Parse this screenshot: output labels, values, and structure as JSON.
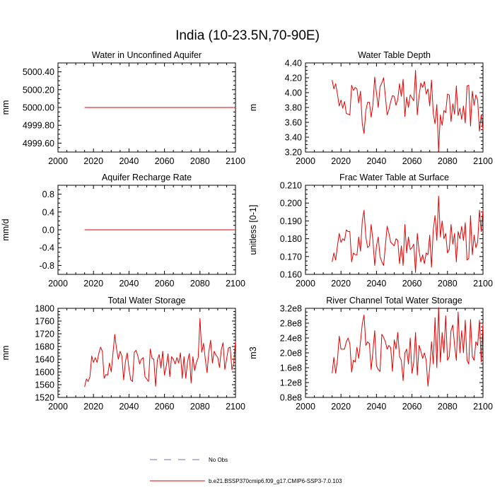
{
  "page": {
    "title": "India (10-23.5N,70-90E)"
  },
  "legend": {
    "items": [
      {
        "label": "No Obs",
        "color": "#7070b0",
        "dash": true
      },
      {
        "label": "b.e21.BSSP370cmip6.f09_g17.CMIP6-SSP3-7.0.103",
        "color": "#e60000",
        "dash": false
      }
    ]
  },
  "chart_data": [
    {
      "type": "line",
      "title": "Water in Unconfined Aquifer",
      "ylabel": "mm",
      "xlim": [
        2000,
        2100
      ],
      "xticks": [
        2000,
        2020,
        2040,
        2060,
        2080,
        2100
      ],
      "ylim": [
        4999.5,
        5000.5
      ],
      "yticks": [
        4999.6,
        4999.8,
        5000.0,
        5000.2,
        5000.4
      ],
      "yticklabels": [
        "4999.60",
        "4999.80",
        "5000.00",
        "5000.20",
        "5000.40"
      ],
      "series": [
        {
          "name": "b.e21.BSSP370cmip6.f09_g17.CMIP6-SSP3-7.0.103",
          "color": "#e60000",
          "x": [
            2015,
            2100
          ],
          "values": [
            5000.0,
            5000.0
          ]
        }
      ]
    },
    {
      "type": "line",
      "title": "Water Table Depth",
      "ylabel": "m",
      "xlim": [
        2000,
        2100
      ],
      "xticks": [
        2000,
        2020,
        2040,
        2060,
        2080,
        2100
      ],
      "ylim": [
        3.2,
        4.4
      ],
      "yticks": [
        3.2,
        3.4,
        3.6,
        3.8,
        4.0,
        4.2,
        4.4
      ],
      "yticklabels": [
        "3.20",
        "3.40",
        "3.60",
        "3.80",
        "4.00",
        "4.20",
        "4.40"
      ],
      "series": [
        {
          "name": "b.e21.BSSP370cmip6.f09_g17.CMIP6-SSP3-7.0.103",
          "color": "#e60000",
          "x_start": 2015,
          "values": [
            4.17,
            4.05,
            4.12,
            3.98,
            3.82,
            3.9,
            3.79,
            3.88,
            3.72,
            3.71,
            3.7,
            4.1,
            4.03,
            4.07,
            4.05,
            3.86,
            4.02,
            3.58,
            3.45,
            3.76,
            3.87,
            3.87,
            3.67,
            3.84,
            4.21,
            3.99,
            3.8,
            4.08,
            4.13,
            4.2,
            3.95,
            3.7,
            3.77,
            3.88,
            3.96,
            3.95,
            3.83,
            3.91,
            4.12,
            3.95,
            4.18,
            3.68,
            3.94,
            3.8,
            3.97,
            3.93,
            3.89,
            4.3,
            3.7,
            3.96,
            4.13,
            4.07,
            4.15,
            3.98,
            4.05,
            3.82,
            4.17,
            3.72,
            3.58,
            3.84,
            3.21,
            3.7,
            3.56,
            3.76,
            3.73,
            3.98,
            3.97,
            3.61,
            3.85,
            3.71,
            4.09,
            3.69,
            3.79,
            3.64,
            3.82,
            3.59,
            4.09,
            4.1,
            3.55,
            4.02,
            3.83,
            3.97,
            3.9,
            3.48,
            3.7,
            3.5
          ]
        }
      ]
    },
    {
      "type": "line",
      "title": "Aquifer Recharge Rate",
      "ylabel": "mm/d",
      "xlim": [
        2000,
        2100
      ],
      "xticks": [
        2000,
        2020,
        2040,
        2060,
        2080,
        2100
      ],
      "ylim": [
        -1.0,
        1.0
      ],
      "yticks": [
        -0.8,
        -0.4,
        0.0,
        0.4,
        0.8
      ],
      "yticklabels": [
        "-0.8",
        "-0.4",
        "0.0",
        "0.4",
        "0.8"
      ],
      "series": [
        {
          "name": "b.e21.BSSP370cmip6.f09_g17.CMIP6-SSP3-7.0.103",
          "color": "#e60000",
          "x": [
            2015,
            2100
          ],
          "values": [
            0.0,
            0.0
          ]
        }
      ]
    },
    {
      "type": "line",
      "title": "Frac Water Table at Surface",
      "ylabel": "unitless [0-1]",
      "xlim": [
        2000,
        2100
      ],
      "xticks": [
        2000,
        2020,
        2040,
        2060,
        2080,
        2100
      ],
      "ylim": [
        0.16,
        0.21
      ],
      "yticks": [
        0.16,
        0.17,
        0.18,
        0.19,
        0.2,
        0.21
      ],
      "yticklabels": [
        "0.160",
        "0.170",
        "0.180",
        "0.190",
        "0.200",
        "0.210"
      ],
      "series": [
        {
          "name": "b.e21.BSSP370cmip6.f09_g17.CMIP6-SSP3-7.0.103",
          "color": "#e60000",
          "x_start": 2015,
          "values": [
            0.167,
            0.172,
            0.168,
            0.176,
            0.183,
            0.178,
            0.18,
            0.179,
            0.185,
            0.184,
            0.184,
            0.167,
            0.172,
            0.171,
            0.171,
            0.181,
            0.173,
            0.19,
            0.196,
            0.181,
            0.175,
            0.176,
            0.188,
            0.179,
            0.165,
            0.176,
            0.181,
            0.17,
            0.167,
            0.165,
            0.176,
            0.187,
            0.183,
            0.178,
            0.177,
            0.176,
            0.18,
            0.179,
            0.166,
            0.176,
            0.165,
            0.188,
            0.172,
            0.181,
            0.174,
            0.175,
            0.177,
            0.161,
            0.183,
            0.173,
            0.167,
            0.171,
            0.166,
            0.172,
            0.171,
            0.182,
            0.164,
            0.185,
            0.193,
            0.179,
            0.204,
            0.181,
            0.19,
            0.18,
            0.183,
            0.172,
            0.174,
            0.188,
            0.177,
            0.183,
            0.167,
            0.184,
            0.18,
            0.187,
            0.179,
            0.189,
            0.168,
            0.169,
            0.193,
            0.171,
            0.182,
            0.175,
            0.178,
            0.196,
            0.184,
            0.196
          ]
        }
      ]
    },
    {
      "type": "line",
      "title": "Total Water Storage",
      "ylabel": "mm",
      "xlim": [
        2000,
        2100
      ],
      "xticks": [
        2000,
        2020,
        2040,
        2060,
        2080,
        2100
      ],
      "ylim": [
        1520,
        1800
      ],
      "yticks": [
        1520,
        1560,
        1600,
        1640,
        1680,
        1720,
        1760,
        1800
      ],
      "yticklabels": [
        "1520",
        "1560",
        "1600",
        "1640",
        "1680",
        "1720",
        "1760",
        "1800"
      ],
      "series": [
        {
          "name": "b.e21.BSSP370cmip6.f09_g17.CMIP6-SSP3-7.0.103",
          "color": "#e60000",
          "x_start": 2015,
          "values": [
            1553,
            1578,
            1570,
            1585,
            1650,
            1630,
            1645,
            1630,
            1658,
            1678,
            1665,
            1580,
            1592,
            1590,
            1628,
            1600,
            1660,
            1718,
            1672,
            1640,
            1665,
            1650,
            1575,
            1633,
            1660,
            1610,
            1575,
            1570,
            1662,
            1668,
            1650,
            1625,
            1640,
            1645,
            1585,
            1578,
            1570,
            1672,
            1643,
            1640,
            1555,
            1638,
            1655,
            1612,
            1665,
            1590,
            1618,
            1657,
            1585,
            1648,
            1640,
            1625,
            1645,
            1628,
            1660,
            1580,
            1648,
            1580,
            1632,
            1658,
            1565,
            1648,
            1604,
            1630,
            1645,
            1768,
            1662,
            1690,
            1640,
            1598,
            1664,
            1700,
            1628,
            1665,
            1653,
            1646,
            1614,
            1670,
            1692,
            1608,
            1640,
            1675,
            1678,
            1607,
            1628,
            1696
          ]
        }
      ]
    },
    {
      "type": "line",
      "title": "River Channel Total Water Storage",
      "ylabel": "m3",
      "xlim": [
        2000,
        2100
      ],
      "xticks": [
        2000,
        2020,
        2040,
        2060,
        2080,
        2100
      ],
      "ylim": [
        80000000.0,
        320000000.0
      ],
      "yticks": [
        80000000.0,
        120000000.0,
        160000000.0,
        200000000.0,
        240000000.0,
        280000000.0,
        320000000.0
      ],
      "yticklabels": [
        "0.8e8",
        "1.2e8",
        "1.6e8",
        "2.0e8",
        "2.4e8",
        "2.8e8",
        "3.2e8"
      ],
      "series": [
        {
          "name": "b.e21.BSSP370cmip6.f09_g17.CMIP6-SSP3-7.0.103",
          "color": "#e60000",
          "x_start": 2015,
          "values": [
            145000000.0,
            188000000.0,
            145000000.0,
            180000000.0,
            245000000.0,
            210000000.0,
            210000000.0,
            210000000.0,
            230000000.0,
            240000000.0,
            225000000.0,
            148000000.0,
            180000000.0,
            175000000.0,
            215000000.0,
            185000000.0,
            230000000.0,
            278000000.0,
            302000000.0,
            220000000.0,
            230000000.0,
            225000000.0,
            155000000.0,
            205000000.0,
            260000000.0,
            165000000.0,
            155000000.0,
            150000000.0,
            250000000.0,
            242000000.0,
            230000000.0,
            210000000.0,
            220000000.0,
            214000000.0,
            150000000.0,
            235000000.0,
            210000000.0,
            255000000.0,
            190000000.0,
            180000000.0,
            125000000.0,
            200000000.0,
            210000000.0,
            170000000.0,
            240000000.0,
            145000000.0,
            175000000.0,
            255000000.0,
            140000000.0,
            220000000.0,
            205000000.0,
            185000000.0,
            200000000.0,
            180000000.0,
            110000000.0,
            160000000.0,
            230000000.0,
            170000000.0,
            295000000.0,
            160000000.0,
            322000000.0,
            175000000.0,
            255000000.0,
            200000000.0,
            300000000.0,
            180000000.0,
            190000000.0,
            260000000.0,
            275000000.0,
            220000000.0,
            180000000.0,
            310000000.0,
            200000000.0,
            260000000.0,
            200000000.0,
            288000000.0,
            180000000.0,
            170000000.0,
            290000000.0,
            190000000.0,
            180000000.0,
            230000000.0,
            220000000.0,
            288000000.0,
            175000000.0,
            280000000.0
          ]
        }
      ]
    }
  ]
}
